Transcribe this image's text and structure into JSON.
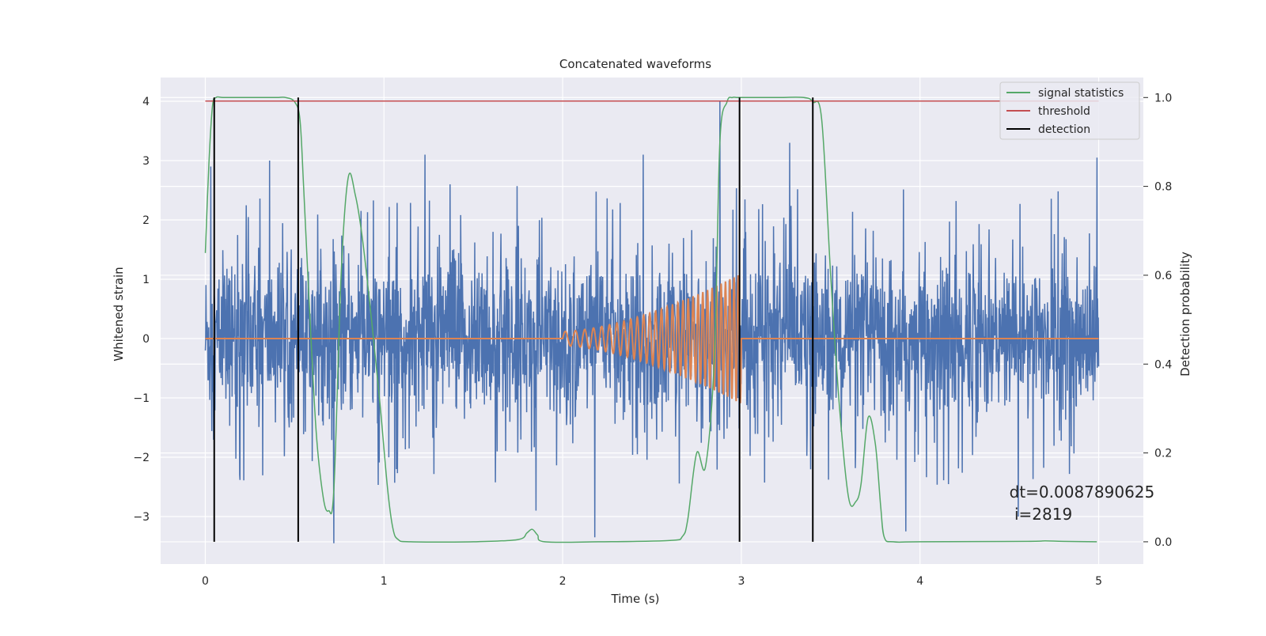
{
  "chart_data": {
    "type": "line",
    "title": "Concatenated waveforms",
    "xlabel": "Time (s)",
    "ylabel_left": "Whitened strain",
    "ylabel_right": "Detection probability",
    "xlim": [
      -0.25,
      5.25
    ],
    "ylim_left": [
      -3.8,
      4.4
    ],
    "ylim_right": [
      -0.05,
      1.045
    ],
    "x_ticks": [
      0,
      1,
      2,
      3,
      4,
      5
    ],
    "y_left_ticks": [
      -3,
      -2,
      -1,
      0,
      1,
      2,
      3,
      4
    ],
    "y_right_ticks": [
      0.0,
      0.2,
      0.4,
      0.6,
      0.8,
      1.0
    ],
    "grid": true,
    "legend_position": "top-right",
    "series": [
      {
        "kind": "noise",
        "axis": "left",
        "color": "#4c72b0",
        "x_range": [
          0,
          5
        ],
        "typical_range": [
          -1.9,
          2.0
        ],
        "peaks": [
          [
            0.03,
            2.9
          ],
          [
            0.36,
            3.0
          ],
          [
            0.72,
            -3.45
          ],
          [
            1.07,
            -2.2
          ],
          [
            1.23,
            3.1
          ],
          [
            1.37,
            2.6
          ],
          [
            1.85,
            -2.9
          ],
          [
            2.18,
            -3.35
          ],
          [
            2.45,
            3.1
          ],
          [
            2.88,
            4.0
          ],
          [
            3.27,
            3.3
          ],
          [
            3.92,
            -3.25
          ],
          [
            4.55,
            -3.0
          ],
          [
            4.99,
            3.05
          ]
        ]
      },
      {
        "kind": "chirp",
        "axis": "left",
        "color": "#dd8452",
        "start": 2.0,
        "end": 3.0,
        "amplitude_start": 0.12,
        "amplitude_end": 1.1,
        "cycles": 30
      },
      {
        "name": "signal statistics",
        "axis": "right",
        "color": "#55a868",
        "x": [
          0,
          0.02,
          0.04,
          0.06,
          0.1,
          0.2,
          0.3,
          0.4,
          0.45,
          0.5,
          0.53,
          0.55,
          0.58,
          0.62,
          0.66,
          0.69,
          0.72,
          0.76,
          0.8,
          0.84,
          0.88,
          0.93,
          0.98,
          1.02,
          1.05,
          1.08,
          1.15,
          1.5,
          1.75,
          1.8,
          1.83,
          1.86,
          1.9,
          2.2,
          2.6,
          2.67,
          2.7,
          2.75,
          2.8,
          2.85,
          2.88,
          2.92,
          2.95,
          2.98,
          3.05,
          3.2,
          3.35,
          3.4,
          3.45,
          3.5,
          3.55,
          3.6,
          3.64,
          3.67,
          3.71,
          3.75,
          3.78,
          3.8,
          3.85,
          4.0,
          4.6,
          4.7,
          4.8,
          4.99
        ],
        "y": [
          0.65,
          0.85,
          0.98,
          1.0,
          1.0,
          1.0,
          1.0,
          1.0,
          1.0,
          0.99,
          0.95,
          0.8,
          0.55,
          0.25,
          0.1,
          0.07,
          0.12,
          0.6,
          0.82,
          0.78,
          0.68,
          0.5,
          0.3,
          0.12,
          0.03,
          0.005,
          0.0,
          0.0,
          0.005,
          0.02,
          0.028,
          0.015,
          0.0,
          0.0,
          0.003,
          0.012,
          0.05,
          0.2,
          0.17,
          0.42,
          0.9,
          0.99,
          1.0,
          1.0,
          1.0,
          1.0,
          1.0,
          0.99,
          0.95,
          0.6,
          0.3,
          0.1,
          0.09,
          0.13,
          0.28,
          0.22,
          0.08,
          0.01,
          0.0,
          0.0,
          0.001,
          0.002,
          0.001,
          0.0
        ]
      },
      {
        "name": "threshold",
        "axis": "right",
        "color": "#c44e52",
        "x": [
          0,
          5
        ],
        "y": [
          0.992,
          0.992
        ]
      },
      {
        "name": "detection",
        "axis": "right",
        "color": "#000000",
        "vlines": [
          0.05,
          0.52,
          2.99,
          3.4
        ],
        "y_span": [
          0.0,
          1.0
        ]
      }
    ],
    "annotation": {
      "lines": [
        "dt=0.0087890625",
        " i=2819"
      ],
      "x": 4.5,
      "y_right": 0.1
    }
  },
  "colors": {
    "axes_facecolor": "#eaeaf2",
    "grid": "#ffffff",
    "text": "#262626"
  }
}
